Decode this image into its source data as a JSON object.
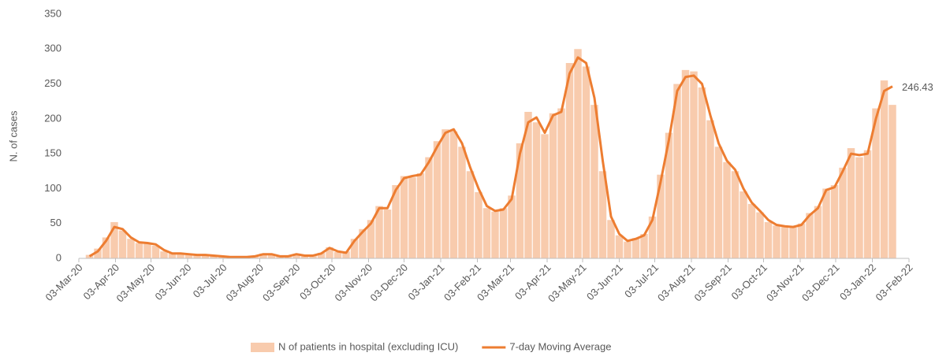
{
  "chart_data": {
    "type": "combo",
    "y_label": "N. of cases",
    "ylim": [
      0,
      350
    ],
    "yticks": [
      0,
      50,
      100,
      150,
      200,
      250,
      300,
      350
    ],
    "xlim": [
      "03-Mar-20",
      "03-Feb-22"
    ],
    "xticks": [
      "03-Mar-20",
      "03-Apr-20",
      "03-May-20",
      "03-Jun-20",
      "03-Jul-20",
      "03-Aug-20",
      "03-Sep-20",
      "03-Oct-20",
      "03-Nov-20",
      "03-Dec-20",
      "03-Jan-21",
      "03-Feb-21",
      "03-Mar-21",
      "03-Apr-21",
      "03-May-21",
      "03-Jun-21",
      "03-Jul-21",
      "03-Aug-21",
      "03-Sep-21",
      "03-Oct-21",
      "03-Nov-21",
      "03-Dec-21",
      "03-Jan-22",
      "03-Feb-22"
    ],
    "grid": false,
    "legend": "bottom",
    "x": [
      "12-Mar-20",
      "19-Mar-20",
      "26-Mar-20",
      "02-Apr-20",
      "09-Apr-20",
      "16-Apr-20",
      "23-Apr-20",
      "30-Apr-20",
      "07-May-20",
      "14-May-20",
      "21-May-20",
      "28-May-20",
      "04-Jun-20",
      "11-Jun-20",
      "18-Jun-20",
      "25-Jun-20",
      "02-Jul-20",
      "09-Jul-20",
      "16-Jul-20",
      "23-Jul-20",
      "30-Jul-20",
      "06-Aug-20",
      "13-Aug-20",
      "20-Aug-20",
      "27-Aug-20",
      "03-Sep-20",
      "10-Sep-20",
      "17-Sep-20",
      "24-Sep-20",
      "01-Oct-20",
      "08-Oct-20",
      "15-Oct-20",
      "22-Oct-20",
      "29-Oct-20",
      "05-Nov-20",
      "12-Nov-20",
      "19-Nov-20",
      "26-Nov-20",
      "03-Dec-20",
      "10-Dec-20",
      "17-Dec-20",
      "24-Dec-20",
      "31-Dec-20",
      "07-Jan-21",
      "14-Jan-21",
      "21-Jan-21",
      "28-Jan-21",
      "04-Feb-21",
      "11-Feb-21",
      "18-Feb-21",
      "25-Feb-21",
      "04-Mar-21",
      "11-Mar-21",
      "18-Mar-21",
      "25-Mar-21",
      "01-Apr-21",
      "08-Apr-21",
      "15-Apr-21",
      "22-Apr-21",
      "29-Apr-21",
      "06-May-21",
      "13-May-21",
      "20-May-21",
      "27-May-21",
      "03-Jun-21",
      "10-Jun-21",
      "17-Jun-21",
      "24-Jun-21",
      "01-Jul-21",
      "08-Jul-21",
      "15-Jul-21",
      "22-Jul-21",
      "29-Jul-21",
      "05-Aug-21",
      "12-Aug-21",
      "19-Aug-21",
      "26-Aug-21",
      "02-Sep-21",
      "09-Sep-21",
      "16-Sep-21",
      "23-Sep-21",
      "30-Sep-21",
      "07-Oct-21",
      "14-Oct-21",
      "21-Oct-21",
      "28-Oct-21",
      "04-Nov-21",
      "11-Nov-21",
      "18-Nov-21",
      "25-Nov-21",
      "02-Dec-21",
      "09-Dec-21",
      "16-Dec-21",
      "23-Dec-21",
      "30-Dec-21",
      "06-Jan-22",
      "13-Jan-22",
      "20-Jan-22"
    ],
    "series": [
      {
        "name": "N of patients in hospital (excluding ICU)",
        "type": "bar",
        "color": "#f8cbad",
        "values": [
          5,
          14,
          30,
          52,
          40,
          28,
          22,
          21,
          18,
          10,
          7,
          6,
          6,
          5,
          4,
          4,
          3,
          2,
          2,
          2,
          3,
          7,
          5,
          3,
          3,
          6,
          4,
          5,
          8,
          16,
          9,
          10,
          28,
          42,
          55,
          75,
          70,
          105,
          118,
          116,
          122,
          145,
          168,
          185,
          182,
          160,
          125,
          95,
          72,
          67,
          72,
          90,
          165,
          210,
          195,
          178,
          208,
          215,
          280,
          300,
          275,
          220,
          125,
          55,
          33,
          24,
          29,
          35,
          60,
          120,
          180,
          250,
          270,
          268,
          245,
          198,
          160,
          138,
          125,
          96,
          78,
          66,
          52,
          47,
          45,
          44,
          50,
          65,
          75,
          100,
          105,
          130,
          158,
          145,
          155,
          215,
          255,
          220
        ]
      },
      {
        "name": "7-day Moving Average",
        "type": "line",
        "color": "#ed7d31",
        "values": [
          3,
          10,
          25,
          45,
          42,
          30,
          23,
          22,
          20,
          12,
          7,
          7,
          6,
          5,
          5,
          4,
          3,
          2,
          2,
          2,
          3,
          6,
          6,
          3,
          3,
          6,
          4,
          4,
          7,
          15,
          10,
          8,
          25,
          38,
          50,
          72,
          72,
          98,
          115,
          118,
          120,
          138,
          160,
          180,
          185,
          165,
          130,
          100,
          75,
          68,
          70,
          85,
          150,
          195,
          202,
          180,
          205,
          210,
          265,
          288,
          280,
          230,
          140,
          60,
          35,
          25,
          28,
          33,
          55,
          110,
          170,
          240,
          260,
          262,
          250,
          205,
          165,
          140,
          127,
          100,
          80,
          68,
          55,
          48,
          46,
          45,
          48,
          62,
          72,
          98,
          102,
          125,
          150,
          148,
          150,
          200,
          240,
          246.43
        ]
      }
    ]
  }
}
